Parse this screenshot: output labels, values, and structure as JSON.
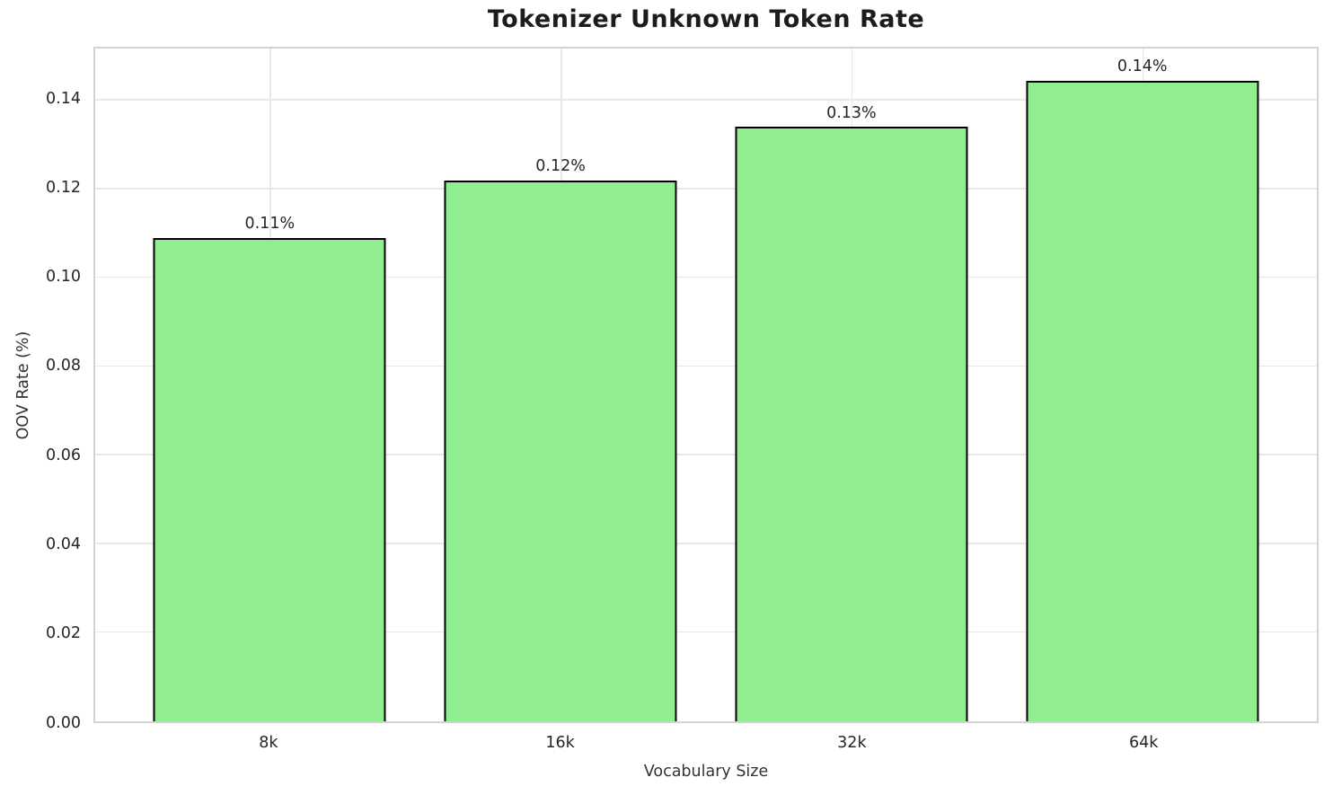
{
  "chart_data": {
    "type": "bar",
    "title": "Tokenizer Unknown Token Rate",
    "xlabel": "Vocabulary Size",
    "ylabel": "OOV Rate (%)",
    "categories": [
      "8k",
      "16k",
      "32k",
      "64k"
    ],
    "values": [
      0.109,
      0.122,
      0.134,
      0.1445
    ],
    "bar_labels": [
      "0.11%",
      "0.12%",
      "0.13%",
      "0.14%"
    ],
    "ylim": [
      0,
      0.1517
    ],
    "yticks": [
      0.0,
      0.02,
      0.04,
      0.06,
      0.08,
      0.1,
      0.12,
      0.14
    ],
    "ytick_labels": [
      "0.00",
      "0.02",
      "0.04",
      "0.06",
      "0.08",
      "0.10",
      "0.12",
      "0.14"
    ],
    "grid": true,
    "legend": "none",
    "colors": {
      "bar_fill": "#90EE90",
      "bar_edge": "#000000",
      "grid": "#e8e8e8",
      "spine": "#d2d2d2",
      "text": "#262626"
    }
  }
}
